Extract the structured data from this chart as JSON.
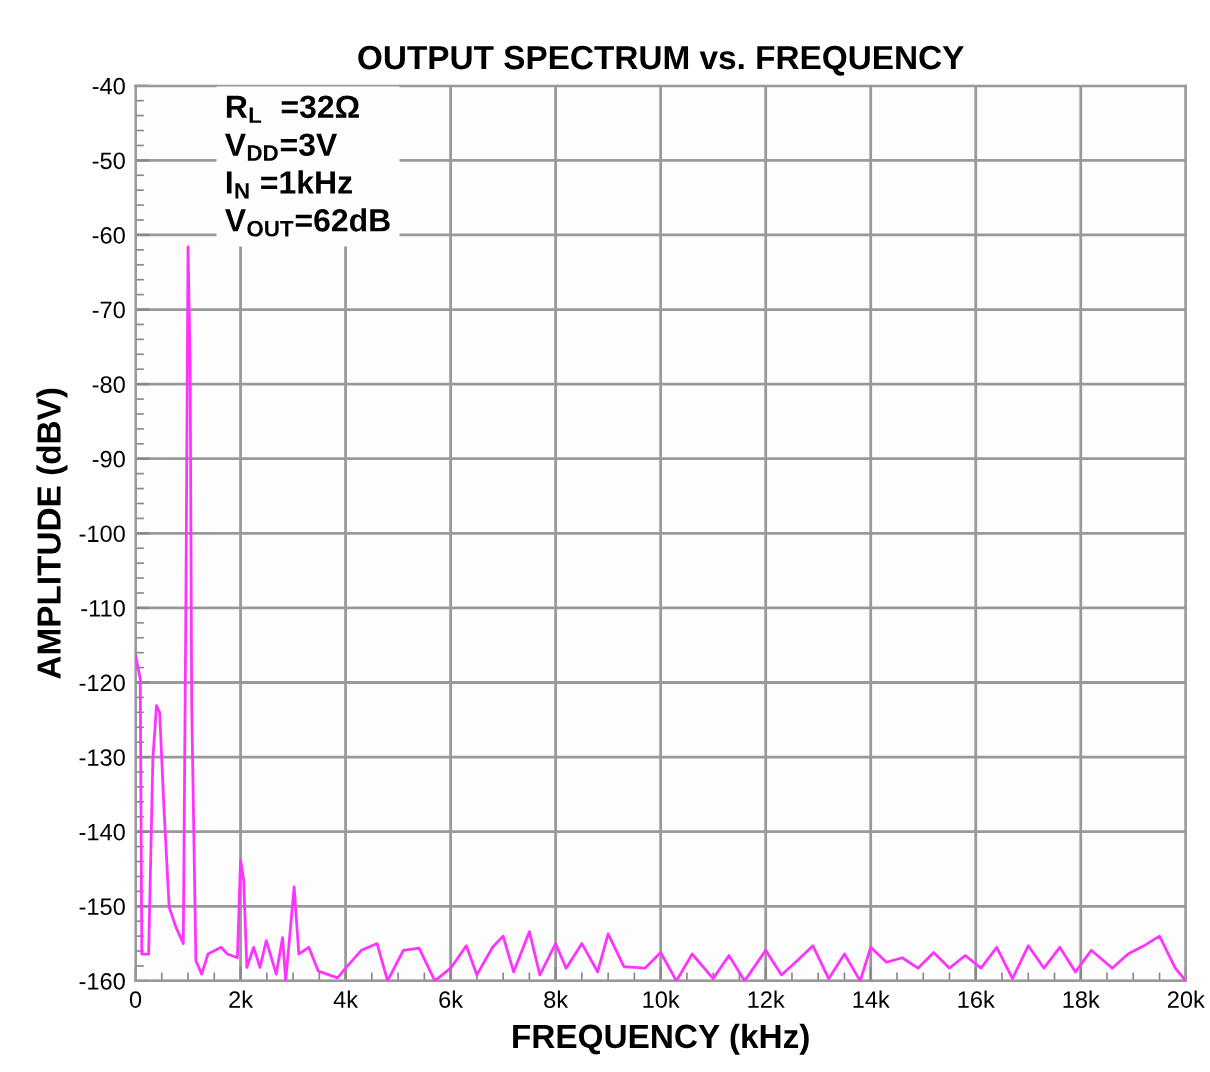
{
  "chart_data": {
    "type": "line",
    "title": "OUTPUT SPECTRUM vs. FREQUENCY",
    "xlabel": "FREQUENCY (kHz)",
    "ylabel": "AMPLITUDE (dBV)",
    "annotations": [
      "R$_{L}$  =32Ω\nV$_{DD}$=3V\nI$_{N}$ =1kHz\nV$_{OUT}$=62dB"
    ],
    "xlim": [
      0,
      20000
    ],
    "xticks": [
      {
        "value": 0,
        "label": "0"
      },
      {
        "value": 2000,
        "label": "2k"
      },
      {
        "value": 4000,
        "label": "4k"
      },
      {
        "value": 6000,
        "label": "6k"
      },
      {
        "value": 8000,
        "label": "8k"
      },
      {
        "value": 10000,
        "label": "10k"
      },
      {
        "value": 12000,
        "label": "12k"
      },
      {
        "value": 14000,
        "label": "14k"
      },
      {
        "value": 16000,
        "label": "16k"
      },
      {
        "value": 18000,
        "label": "18k"
      },
      {
        "value": 20000,
        "label": "20k"
      }
    ],
    "ylim": [
      -160,
      -40
    ],
    "yticks": [
      -160,
      -150,
      -140,
      -130,
      -120,
      -110,
      -100,
      -90,
      -80,
      -70,
      -60,
      -50,
      -40
    ],
    "grid": true,
    "legend": false,
    "line_style": "solid",
    "marker": "none",
    "series": [
      {
        "color": "#ff33ff",
        "x": [
          0,
          90,
          120,
          250,
          330,
          400,
          460,
          540,
          640,
          770,
          910,
          960,
          1000,
          1040,
          1070,
          1150,
          1260,
          1380,
          1630,
          1750,
          1940,
          2000,
          2060,
          2120,
          2250,
          2370,
          2490,
          2680,
          2800,
          2860,
          3020,
          3110,
          3300,
          3480,
          3850,
          4000,
          4300,
          4600,
          4800,
          5100,
          5400,
          5700,
          6000,
          6300,
          6500,
          6800,
          7000,
          7200,
          7500,
          7700,
          8000,
          8200,
          8500,
          8800,
          9000,
          9300,
          9700,
          10000,
          10300,
          10600,
          11000,
          11300,
          11600,
          12000,
          12300,
          12600,
          12900,
          13200,
          13500,
          13800,
          14000,
          14300,
          14600,
          14900,
          15200,
          15500,
          15800,
          16100,
          16400,
          16700,
          17000,
          17300,
          17600,
          17900,
          18200,
          18600,
          18900,
          19200,
          19500,
          19800,
          20000
        ],
        "values": [
          -116.4,
          -119.5,
          -156.4,
          -156.4,
          -130.3,
          -123.1,
          -124,
          -136.6,
          -150.1,
          -152.8,
          -155,
          -108.8,
          -61.6,
          -77.3,
          -123,
          -157.3,
          -159.1,
          -156.4,
          -155.5,
          -156.4,
          -156.9,
          -143.8,
          -146.5,
          -158.2,
          -155.5,
          -158.2,
          -154.6,
          -159.1,
          -154.2,
          -160,
          -147.4,
          -156.4,
          -155.5,
          -158.7,
          -159.6,
          -158.3,
          -155.9,
          -155,
          -160,
          -155.9,
          -155.6,
          -160,
          -158.3,
          -155.3,
          -159.2,
          -155.5,
          -154,
          -158.8,
          -153.4,
          -159.2,
          -155,
          -158.3,
          -155,
          -158.8,
          -153.7,
          -158.1,
          -158.3,
          -156.2,
          -160,
          -156.4,
          -159.7,
          -156.6,
          -160,
          -155.9,
          -159.2,
          -157.3,
          -155.3,
          -159.7,
          -156.4,
          -160,
          -155.5,
          -157.5,
          -156.9,
          -158.3,
          -156.2,
          -158.3,
          -156.6,
          -158.3,
          -155.5,
          -159.7,
          -155.3,
          -158.3,
          -155.5,
          -158.8,
          -155.9,
          -158.3,
          -156.4,
          -155.3,
          -154,
          -158.3,
          -160
        ]
      }
    ]
  }
}
